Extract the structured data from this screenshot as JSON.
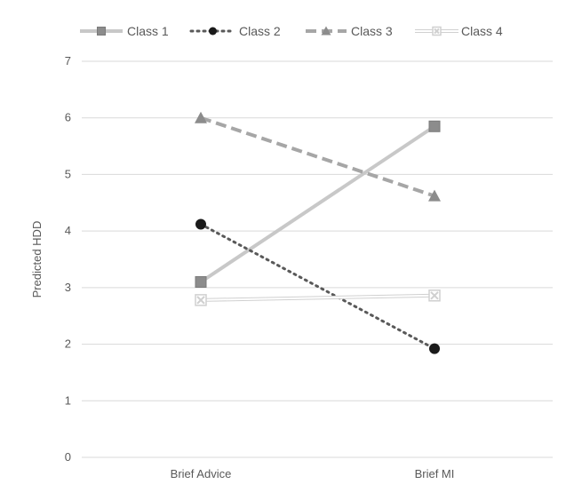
{
  "chart_data": {
    "type": "line",
    "categories": [
      "Brief Advice",
      "Brief MI"
    ],
    "series": [
      {
        "name": "Class 1",
        "values": [
          3.1,
          5.85
        ],
        "color": "#c8c8c8",
        "marker": "square",
        "marker_color": "#8c8c8c",
        "dash": "solid"
      },
      {
        "name": "Class 2",
        "values": [
          4.12,
          1.92
        ],
        "color": "#595959",
        "marker": "circle",
        "marker_color": "#1a1a1a",
        "dash": "dotted"
      },
      {
        "name": "Class 3",
        "values": [
          6.0,
          4.62
        ],
        "color": "#a6a6a6",
        "marker": "triangle",
        "marker_color": "#8c8c8c",
        "dash": "dashed"
      },
      {
        "name": "Class 4",
        "values": [
          2.78,
          2.86
        ],
        "color": "#d0d0d0",
        "marker": "x-box",
        "marker_color": "#d0d0d0",
        "dash": "double"
      }
    ],
    "xlabel": "",
    "ylabel": "Predicted HDD",
    "ylim": [
      0,
      7
    ],
    "yticks": [
      "0",
      "1",
      "2",
      "3",
      "4",
      "5",
      "6",
      "7"
    ],
    "grid": true,
    "legend_position": "top"
  }
}
